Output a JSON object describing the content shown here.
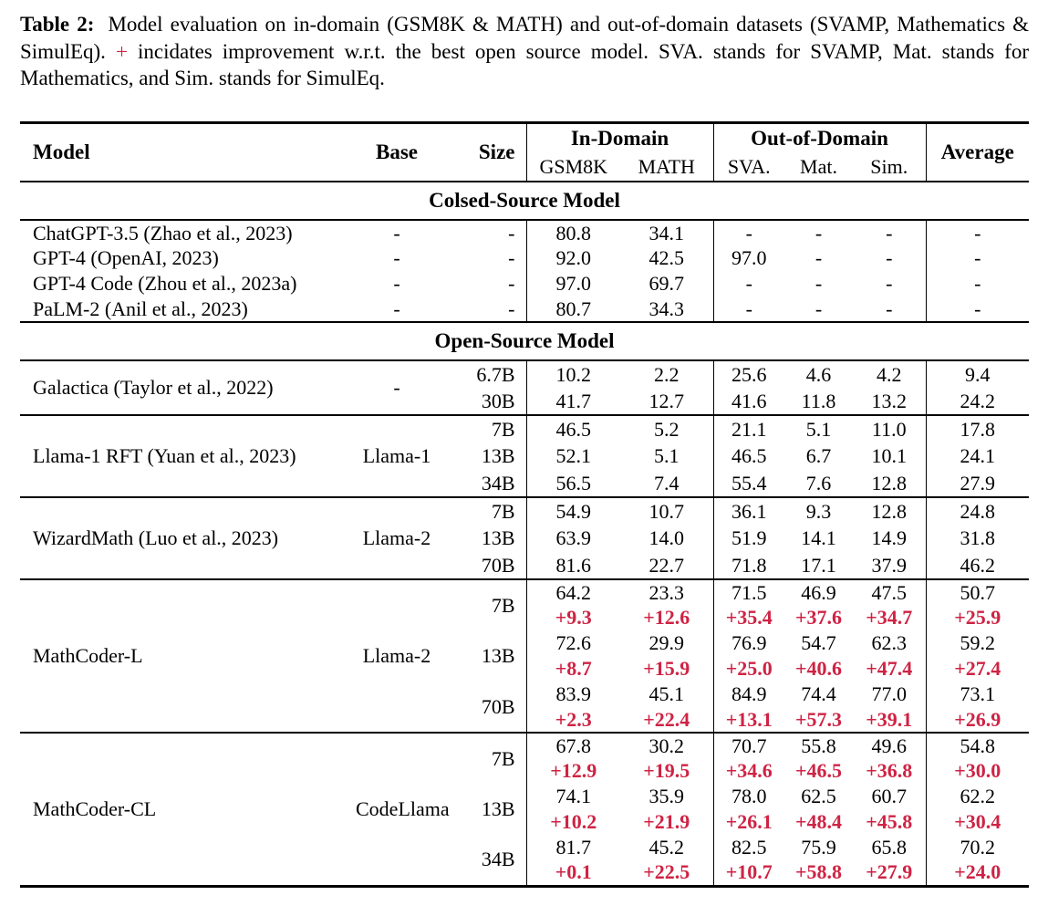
{
  "caption": {
    "label": "Table 2:",
    "text_before_plus": "Model evaluation on in-domain (GSM8K & MATH) and out-of-domain datasets (SVAMP, Mathematics & SimulEq).",
    "plus_sign": "+",
    "text_after_plus": "incidates improvement w.r.t. the best open source model. SVA. stands for SVAMP, Mat. stands for Mathematics, and Sim. stands for SimulEq."
  },
  "colors": {
    "delta_red": "#cf2344",
    "text": "#000000",
    "rule": "#000000"
  },
  "header": {
    "model": "Model",
    "base": "Base",
    "size": "Size",
    "in_domain": "In-Domain",
    "out_of_domain": "Out-of-Domain",
    "gsm8k": "GSM8K",
    "math": "MATH",
    "sva": "SVA.",
    "mat": "Mat.",
    "sim": "Sim.",
    "average": "Average"
  },
  "sections": {
    "closed": {
      "title": "Colsed-Source Model",
      "rows": [
        {
          "model": "ChatGPT-3.5 (Zhao et al., 2023)",
          "base": "-",
          "size": "-",
          "values": [
            "80.8",
            "34.1",
            "-",
            "-",
            "-",
            "-"
          ]
        },
        {
          "model": "GPT-4 (OpenAI, 2023)",
          "base": "-",
          "size": "-",
          "values": [
            "92.0",
            "42.5",
            "97.0",
            "-",
            "-",
            "-"
          ]
        },
        {
          "model": "GPT-4 Code (Zhou et al., 2023a)",
          "base": "-",
          "size": "-",
          "values": [
            "97.0",
            "69.7",
            "-",
            "-",
            "-",
            "-"
          ]
        },
        {
          "model": "PaLM-2 (Anil et al., 2023)",
          "base": "-",
          "size": "-",
          "values": [
            "80.7",
            "34.3",
            "-",
            "-",
            "-",
            "-"
          ]
        }
      ]
    },
    "open": {
      "title": "Open-Source Model",
      "groups": [
        {
          "model": "Galactica (Taylor et al., 2022)",
          "base": "-",
          "rows": [
            {
              "size": "6.7B",
              "values": [
                "10.2",
                "2.2",
                "25.6",
                "4.6",
                "4.2",
                "9.4"
              ]
            },
            {
              "size": "30B",
              "values": [
                "41.7",
                "12.7",
                "41.6",
                "11.8",
                "13.2",
                "24.2"
              ]
            }
          ]
        },
        {
          "model": "Llama-1 RFT (Yuan et al., 2023)",
          "base": "Llama-1",
          "rows": [
            {
              "size": "7B",
              "values": [
                "46.5",
                "5.2",
                "21.1",
                "5.1",
                "11.0",
                "17.8"
              ]
            },
            {
              "size": "13B",
              "values": [
                "52.1",
                "5.1",
                "46.5",
                "6.7",
                "10.1",
                "24.1"
              ]
            },
            {
              "size": "34B",
              "values": [
                "56.5",
                "7.4",
                "55.4",
                "7.6",
                "12.8",
                "27.9"
              ]
            }
          ]
        },
        {
          "model": "WizardMath (Luo et al., 2023)",
          "base": "Llama-2",
          "rows": [
            {
              "size": "7B",
              "values": [
                "54.9",
                "10.7",
                "36.1",
                "9.3",
                "12.8",
                "24.8"
              ]
            },
            {
              "size": "13B",
              "values": [
                "63.9",
                "14.0",
                "51.9",
                "14.1",
                "14.9",
                "31.8"
              ]
            },
            {
              "size": "70B",
              "values": [
                "81.6",
                "22.7",
                "71.8",
                "17.1",
                "37.9",
                "46.2"
              ]
            }
          ]
        },
        {
          "model": "MathCoder-L",
          "base": "Llama-2",
          "rows": [
            {
              "size": "7B",
              "values": [
                "64.2",
                "23.3",
                "71.5",
                "46.9",
                "47.5",
                "50.7"
              ],
              "delta": [
                "+9.3",
                "+12.6",
                "+35.4",
                "+37.6",
                "+34.7",
                "+25.9"
              ]
            },
            {
              "size": "13B",
              "values": [
                "72.6",
                "29.9",
                "76.9",
                "54.7",
                "62.3",
                "59.2"
              ],
              "delta": [
                "+8.7",
                "+15.9",
                "+25.0",
                "+40.6",
                "+47.4",
                "+27.4"
              ]
            },
            {
              "size": "70B",
              "values": [
                "83.9",
                "45.1",
                "84.9",
                "74.4",
                "77.0",
                "73.1"
              ],
              "delta": [
                "+2.3",
                "+22.4",
                "+13.1",
                "+57.3",
                "+39.1",
                "+26.9"
              ]
            }
          ]
        },
        {
          "model": "MathCoder-CL",
          "base": "CodeLlama",
          "rows": [
            {
              "size": "7B",
              "values": [
                "67.8",
                "30.2",
                "70.7",
                "55.8",
                "49.6",
                "54.8"
              ],
              "delta": [
                "+12.9",
                "+19.5",
                "+34.6",
                "+46.5",
                "+36.8",
                "+30.0"
              ]
            },
            {
              "size": "13B",
              "values": [
                "74.1",
                "35.9",
                "78.0",
                "62.5",
                "60.7",
                "62.2"
              ],
              "delta": [
                "+10.2",
                "+21.9",
                "+26.1",
                "+48.4",
                "+45.8",
                "+30.4"
              ]
            },
            {
              "size": "34B",
              "values": [
                "81.7",
                "45.2",
                "82.5",
                "75.9",
                "65.8",
                "70.2"
              ],
              "delta": [
                "+0.1",
                "+22.5",
                "+10.7",
                "+58.8",
                "+27.9",
                "+24.0"
              ]
            }
          ]
        }
      ]
    }
  }
}
